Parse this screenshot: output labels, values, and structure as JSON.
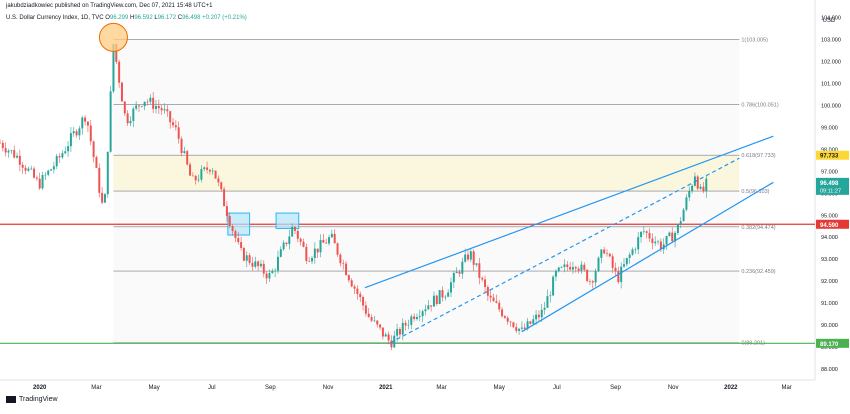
{
  "header": {
    "publisher": "jakubdziadkowiec published on TradingView.com, Dec 07, 2021 15:48 UTC+1"
  },
  "symbol": {
    "name": "U.S. Dollar Currency Index, 1D, TVC",
    "o_label": "O",
    "o": "96.299",
    "h_label": "H",
    "h": "96.592",
    "l_label": "L",
    "l": "96.172",
    "c_label": "C",
    "c": "96.498",
    "change": "+0.207 (+0.21%)"
  },
  "brand": {
    "name": "TradingView"
  },
  "chart_data": {
    "type": "candlestick",
    "currency": "USD",
    "x_ticks": [
      "2020",
      "Mar",
      "May",
      "Jul",
      "Sep",
      "Nov",
      "2021",
      "Mar",
      "May",
      "Jul",
      "Sep",
      "Nov",
      "2022",
      "Mar"
    ],
    "x_tick_dates": [
      "2020-01-01",
      "2020-03-01",
      "2020-05-01",
      "2020-07-01",
      "2020-09-01",
      "2020-11-01",
      "2021-01-01",
      "2021-03-01",
      "2021-05-01",
      "2021-07-01",
      "2021-09-01",
      "2021-11-01",
      "2022-01-01",
      "2022-03-01"
    ],
    "y_ticks": [
      "104.000",
      "103.000",
      "102.000",
      "101.000",
      "100.000",
      "99.000",
      "98.000",
      "97.000",
      "96.000",
      "95.000",
      "94.000",
      "93.000",
      "92.000",
      "91.000",
      "90.000",
      "89.000",
      "88.000"
    ],
    "ylim": [
      87.5,
      104.8
    ],
    "xlim": [
      "2019-11-20",
      "2022-03-31"
    ],
    "price_path": [
      [
        "2019-11-20",
        98.3
      ],
      [
        "2019-12-10",
        97.6
      ],
      [
        "2019-12-31",
        96.4
      ],
      [
        "2020-01-20",
        97.5
      ],
      [
        "2020-02-19",
        99.6
      ],
      [
        "2020-03-09",
        95.0
      ],
      [
        "2020-03-19",
        102.8
      ],
      [
        "2020-04-01",
        99.3
      ],
      [
        "2020-04-20",
        100.3
      ],
      [
        "2020-05-10",
        99.8
      ],
      [
        "2020-05-25",
        98.8
      ],
      [
        "2020-06-10",
        96.5
      ],
      [
        "2020-07-01",
        97.3
      ],
      [
        "2020-07-31",
        93.3
      ],
      [
        "2020-08-20",
        92.6
      ],
      [
        "2020-09-01",
        92.2
      ],
      [
        "2020-09-25",
        94.5
      ],
      [
        "2020-10-10",
        93.1
      ],
      [
        "2020-11-04",
        94.0
      ],
      [
        "2020-11-20",
        92.5
      ],
      [
        "2020-12-15",
        90.3
      ],
      [
        "2021-01-06",
        89.2
      ],
      [
        "2021-01-31",
        90.5
      ],
      [
        "2021-03-05",
        91.5
      ],
      [
        "2021-03-31",
        93.3
      ],
      [
        "2021-04-20",
        91.2
      ],
      [
        "2021-05-25",
        89.7
      ],
      [
        "2021-06-16",
        90.6
      ],
      [
        "2021-06-30",
        92.3
      ],
      [
        "2021-07-20",
        92.9
      ],
      [
        "2021-08-06",
        92.0
      ],
      [
        "2021-08-20",
        93.5
      ],
      [
        "2021-09-03",
        92.1
      ],
      [
        "2021-09-30",
        94.3
      ],
      [
        "2021-10-20",
        93.6
      ],
      [
        "2021-11-05",
        94.3
      ],
      [
        "2021-11-24",
        96.9
      ],
      [
        "2021-12-01",
        95.9
      ],
      [
        "2021-12-07",
        96.498
      ]
    ],
    "fibonacci": [
      {
        "label": "1(103.005)",
        "value": 103.005
      },
      {
        "label": "0.786(100.051)",
        "value": 100.051
      },
      {
        "label": "0.618(97.733)",
        "value": 97.733
      },
      {
        "label": "0.5(96.103)",
        "value": 96.103
      },
      {
        "label": "0.382(94.474)",
        "value": 94.474
      },
      {
        "label": "0.236(92.459)",
        "value": 92.459
      },
      {
        "label": "0(89.201)",
        "value": 89.201
      }
    ],
    "price_labels": [
      {
        "text": "97.733",
        "value": 97.733,
        "color": "#fdd835",
        "text_color": "#131722"
      },
      {
        "text": "96.498",
        "value": 96.498,
        "color": "#26a69a",
        "text_color": "#ffffff",
        "subtext": "09:11:27"
      },
      {
        "text": "94.590",
        "value": 94.59,
        "color": "#e53935",
        "text_color": "#ffffff"
      },
      {
        "text": "89.170",
        "value": 89.17,
        "color": "#4caf50",
        "text_color": "#ffffff"
      }
    ],
    "horizontal_lines": [
      {
        "value": 94.59,
        "color": "#e53935"
      },
      {
        "value": 89.17,
        "color": "#4caf50"
      }
    ],
    "trendlines": [
      {
        "from": [
          "2020-12-10",
          91.7
        ],
        "to": [
          "2022-02-15",
          98.6
        ],
        "dashed": false
      },
      {
        "from": [
          "2021-01-06",
          89.2
        ],
        "to": [
          "2022-01-10",
          97.6
        ],
        "dashed": true
      },
      {
        "from": [
          "2021-05-25",
          89.7
        ],
        "to": [
          "2022-02-15",
          96.5
        ],
        "dashed": false
      }
    ],
    "highlight_boxes": [
      {
        "from": [
          "2020-07-18",
          95.1
        ],
        "to": [
          "2020-08-10",
          94.1
        ]
      },
      {
        "from": [
          "2020-09-07",
          95.1
        ],
        "to": [
          "2020-10-01",
          94.4
        ]
      }
    ],
    "circle_marker": {
      "date": "2020-03-19",
      "value": 103.1
    },
    "colors": {
      "up": "#26a69a",
      "down": "#ef5350",
      "trend": "#2196f3",
      "fib_line": "#787b86",
      "fib_zone": "#fff9c4",
      "circle_fill": "#ffcc80",
      "circle_stroke": "#ef6c00",
      "box_fill": "#b3e5fc",
      "box_stroke": "#29b6f6"
    }
  }
}
